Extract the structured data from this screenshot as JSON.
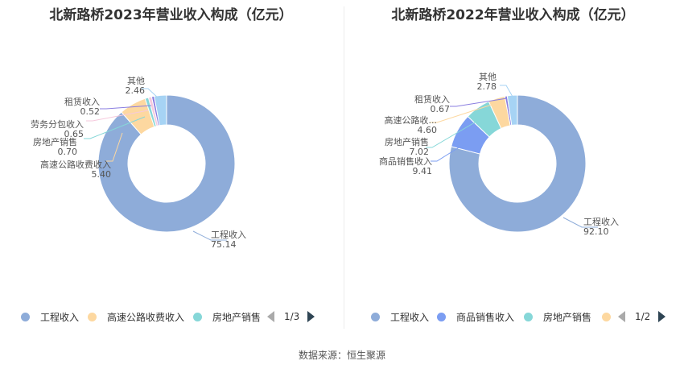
{
  "chart_data": [
    {
      "type": "pie",
      "title": "北新路桥2023年营业收入构成（亿元）",
      "slices": [
        {
          "name": "工程收入",
          "value": 75.14,
          "value_label": "75.14",
          "color": "#8eacd9"
        },
        {
          "name": "高速公路收费收入",
          "value": 5.4,
          "value_label": "5.40",
          "color": "#fdd8a0"
        },
        {
          "name": "房地产销售",
          "value": 0.7,
          "value_label": "0.70",
          "color": "#86d7d8"
        },
        {
          "name": "劳务分包收入",
          "value": 0.65,
          "value_label": "0.65",
          "color": "#f6c9dd"
        },
        {
          "name": "租赁收入",
          "value": 0.52,
          "value_label": "0.52",
          "color": "#8a7ee0"
        },
        {
          "name": "其他",
          "value": 2.46,
          "value_label": "2.46",
          "color": "#a6d3f4"
        }
      ],
      "legend": {
        "items": [
          "工程收入",
          "高速公路收费收入",
          "房地产销售"
        ],
        "page": "1/3"
      }
    },
    {
      "type": "pie",
      "title": "北新路桥2022年营业收入构成（亿元）",
      "slices": [
        {
          "name": "工程收入",
          "value": 92.1,
          "value_label": "92.10",
          "color": "#8eacd9"
        },
        {
          "name": "商品销售收入",
          "value": 9.41,
          "value_label": "9.41",
          "color": "#7b9df2"
        },
        {
          "name": "房地产销售",
          "value": 7.02,
          "value_label": "7.02",
          "color": "#86d7d8"
        },
        {
          "name": "高速公路收...",
          "value": 4.6,
          "value_label": "4.60",
          "color": "#fdd8a0"
        },
        {
          "name": "租赁收入",
          "value": 0.67,
          "value_label": "0.67",
          "color": "#8a7ee0"
        },
        {
          "name": "其他",
          "value": 2.78,
          "value_label": "2.78",
          "color": "#a6d3f4"
        }
      ],
      "legend": {
        "items": [
          "工程收入",
          "商品销售收入",
          "房地产销售"
        ],
        "page": "1/2"
      }
    }
  ],
  "source": "数据来源：恒生聚源"
}
